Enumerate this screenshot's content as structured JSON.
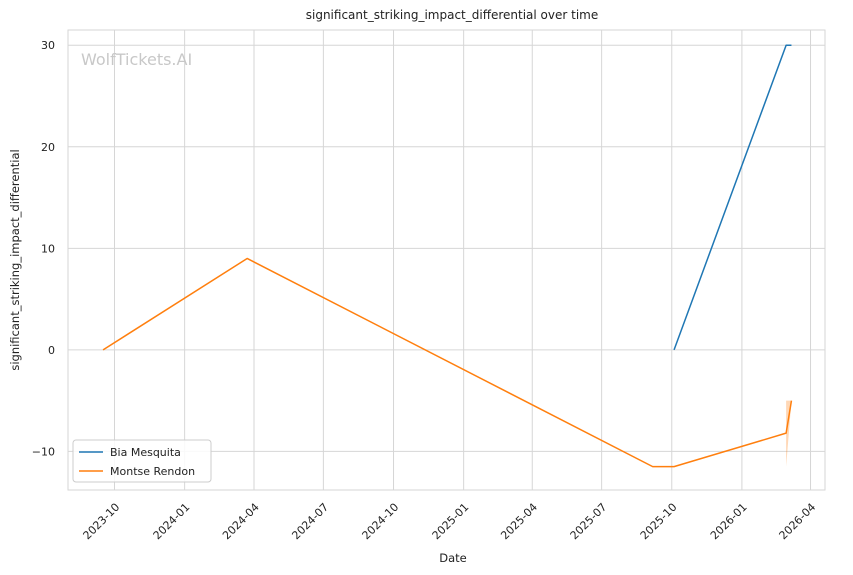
{
  "chart_data": {
    "type": "line",
    "title": "significant_striking_impact_differential over time",
    "xlabel": "Date",
    "ylabel": "significant_striking_impact_differential",
    "watermark": "WolfTickets.AI",
    "x_axis": {
      "type": "date",
      "range": [
        "2023-08-01",
        "2026-04-20"
      ],
      "ticks": [
        {
          "date": "2023-10-01",
          "label": "2023-10"
        },
        {
          "date": "2024-01-01",
          "label": "2024-01"
        },
        {
          "date": "2024-04-01",
          "label": "2024-04"
        },
        {
          "date": "2024-07-01",
          "label": "2024-07"
        },
        {
          "date": "2024-10-01",
          "label": "2024-10"
        },
        {
          "date": "2025-01-01",
          "label": "2025-01"
        },
        {
          "date": "2025-04-01",
          "label": "2025-04"
        },
        {
          "date": "2025-07-01",
          "label": "2025-07"
        },
        {
          "date": "2025-10-01",
          "label": "2025-10"
        },
        {
          "date": "2026-01-01",
          "label": "2026-01"
        },
        {
          "date": "2026-04-01",
          "label": "2026-04"
        }
      ]
    },
    "y_axis": {
      "range": [
        -13.8,
        31.5
      ],
      "ticks": [
        {
          "value": -10,
          "label": "−10"
        },
        {
          "value": 0,
          "label": "0"
        },
        {
          "value": 10,
          "label": "10"
        },
        {
          "value": 20,
          "label": "20"
        },
        {
          "value": 30,
          "label": "30"
        }
      ]
    },
    "grid": true,
    "legend": {
      "position": "lower-left"
    },
    "series": [
      {
        "name": "Bia Mesquita",
        "color": "#1f77b4",
        "points": [
          {
            "x": "2025-10-04",
            "y": 0
          },
          {
            "x": "2026-02-28",
            "y": 30
          },
          {
            "x": "2026-03-07",
            "y": 30
          }
        ],
        "band": []
      },
      {
        "name": "Montse Rendon",
        "color": "#ff7f0e",
        "points": [
          {
            "x": "2023-09-16",
            "y": 0
          },
          {
            "x": "2024-03-23",
            "y": 9
          },
          {
            "x": "2025-09-06",
            "y": -11.5
          },
          {
            "x": "2025-10-04",
            "y": -11.5
          },
          {
            "x": "2026-02-28",
            "y": -8.2
          },
          {
            "x": "2026-03-07",
            "y": -5
          }
        ],
        "band": [
          {
            "x": "2026-02-28",
            "low": -11.5,
            "high": -5
          },
          {
            "x": "2026-03-07",
            "low": -5,
            "high": -5
          }
        ]
      }
    ]
  }
}
